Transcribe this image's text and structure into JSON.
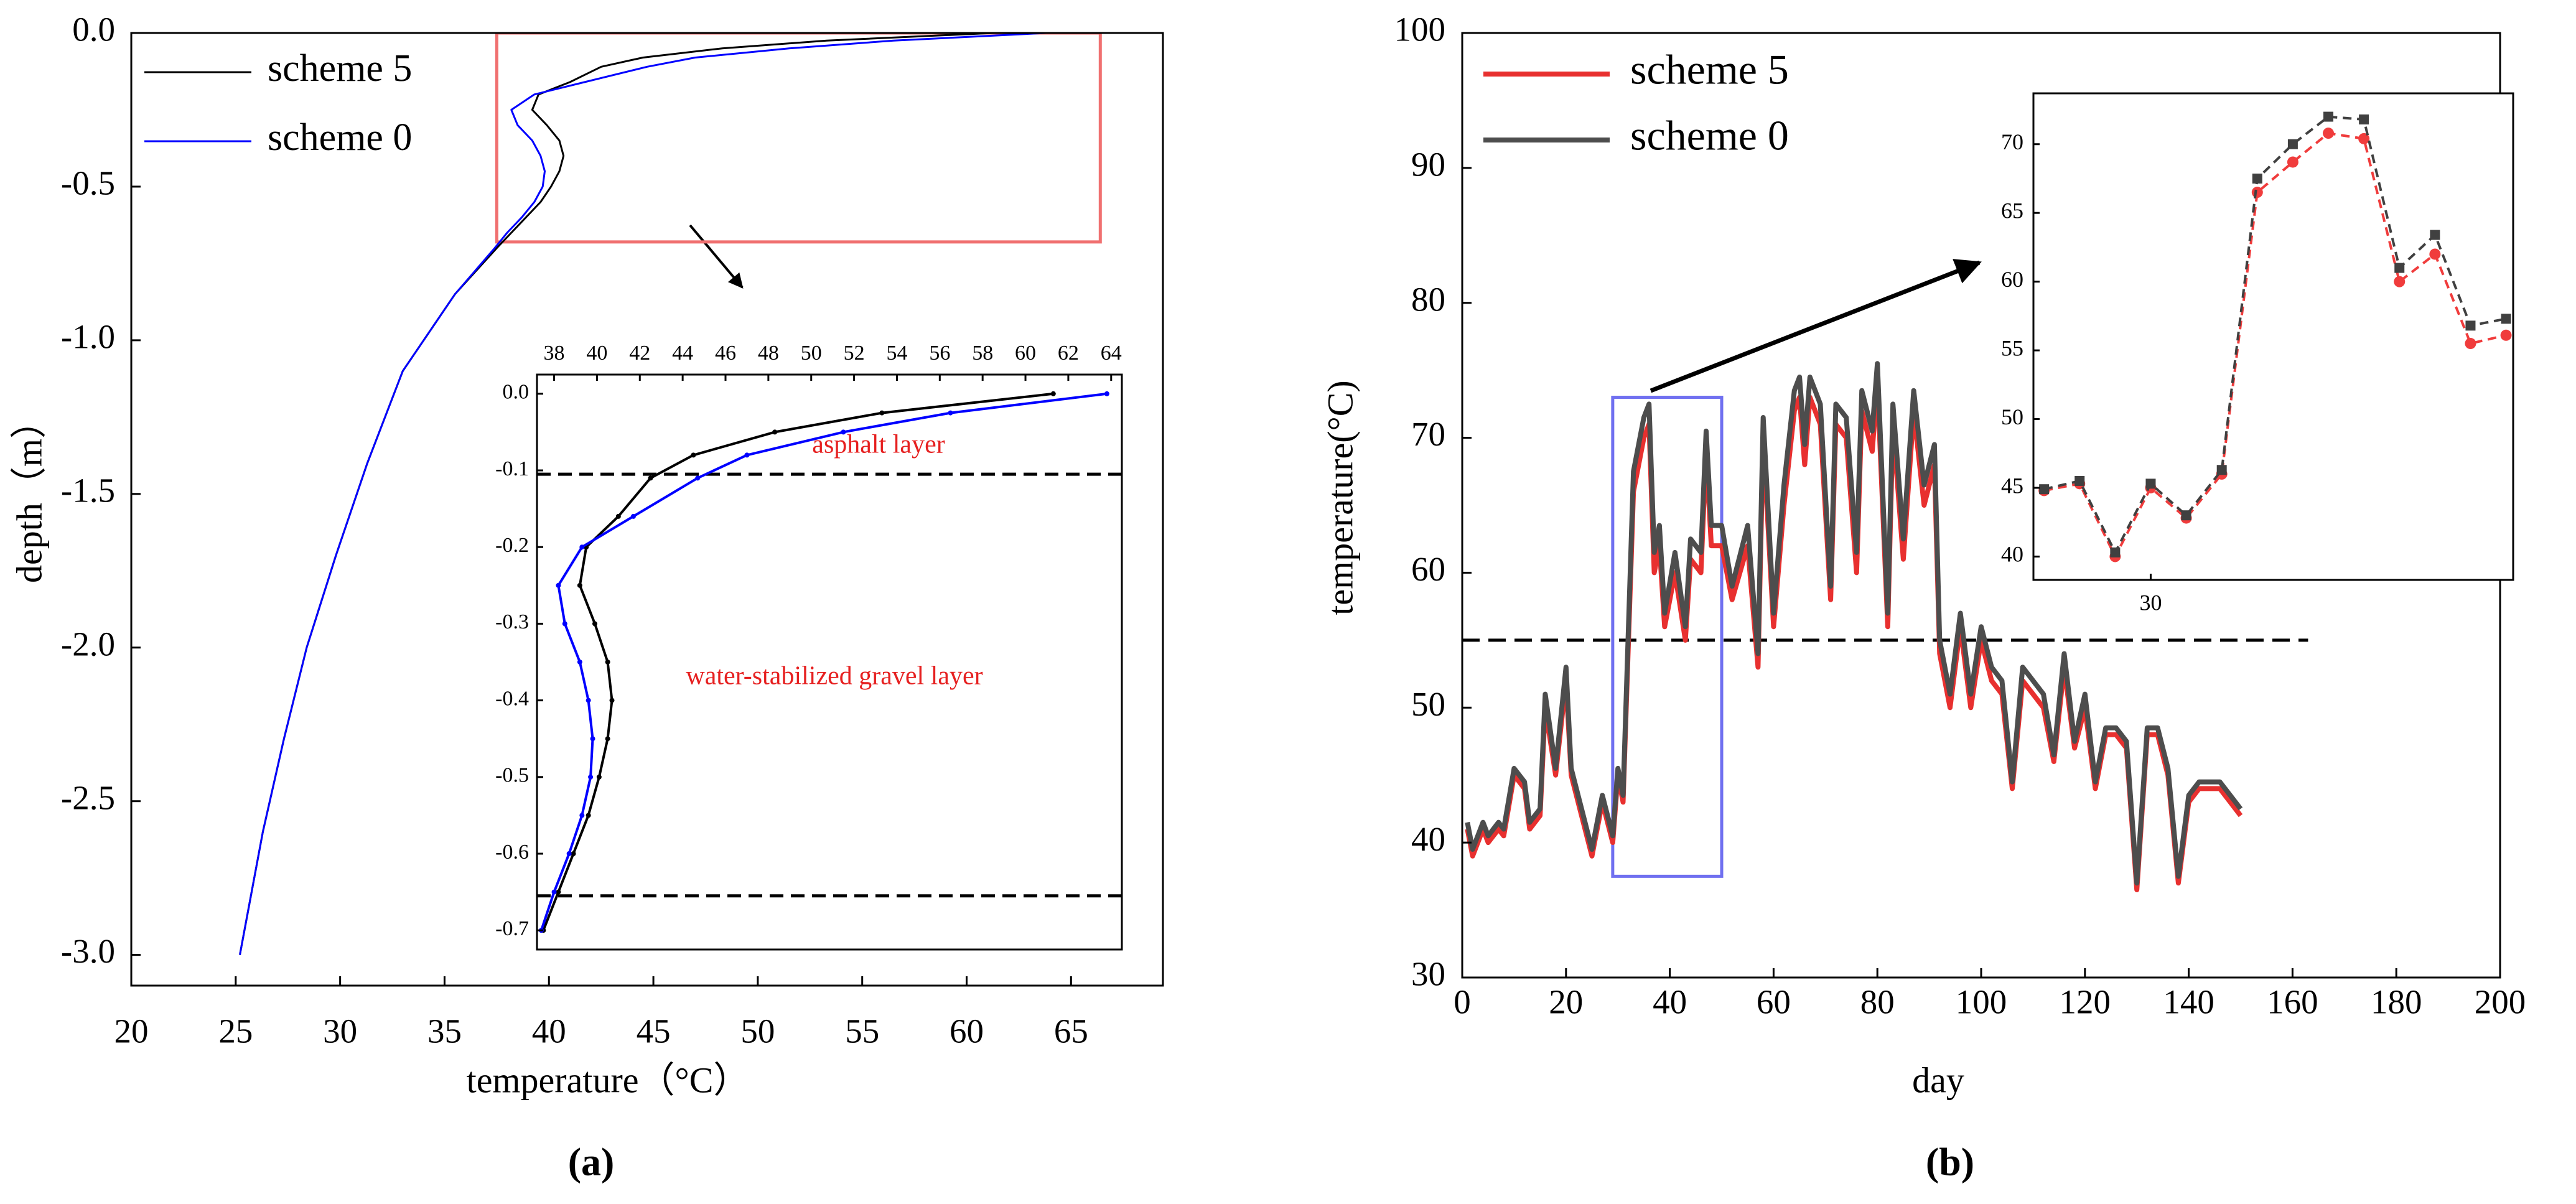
{
  "chart_data": [
    {
      "type": "line",
      "caption": "(a)",
      "xlabel": "temperature（°C）",
      "ylabel": "depth（m）",
      "xlim": [
        20,
        69.4
      ],
      "ylim": [
        -3.1,
        0
      ],
      "xticks": [
        20,
        25,
        30,
        35,
        40,
        45,
        50,
        55,
        60,
        65
      ],
      "yticks": [
        {
          "value": 0,
          "label": "0.0"
        },
        -0.5,
        {
          "value": -1,
          "label": "-1.0"
        },
        -1.5,
        {
          "value": -2,
          "label": "-2.0"
        },
        -2.5,
        {
          "value": -3,
          "label": "-3.0"
        }
      ],
      "legend": "upper left",
      "highlight": {
        "x": [
          37.5,
          66.4
        ],
        "y": [
          -0.68,
          0
        ]
      },
      "series": [
        {
          "name": "scheme 5",
          "color": "#000000",
          "x": [
            61.3,
            53.3,
            48.3,
            44.5,
            42.5,
            41,
            39.5,
            39.2,
            39.9,
            40.5,
            40.7,
            40.5,
            40.1,
            39.6,
            38.9,
            38.2,
            37.5,
            35.5,
            33,
            31.3,
            29.8,
            28.4,
            27.3,
            26.3,
            25.2
          ],
          "values": [
            0,
            -0.025,
            -0.05,
            -0.08,
            -0.11,
            -0.16,
            -0.2,
            -0.25,
            -0.3,
            -0.35,
            -0.4,
            -0.45,
            -0.5,
            -0.55,
            -0.6,
            -0.65,
            -0.7,
            -0.85,
            -1.1,
            -1.4,
            -1.7,
            -2.0,
            -2.3,
            -2.6,
            -3.0
          ]
        },
        {
          "name": "scheme 0",
          "color": "#0000ff",
          "x": [
            63.8,
            56.5,
            51.5,
            47,
            44.7,
            41.7,
            39.3,
            38.2,
            38.5,
            39.2,
            39.6,
            39.8,
            39.7,
            39.3,
            38.7,
            38.0,
            37.4,
            35.5,
            33,
            31.3,
            29.8,
            28.4,
            27.3,
            26.3,
            25.2
          ],
          "values": [
            0,
            -0.025,
            -0.05,
            -0.08,
            -0.11,
            -0.16,
            -0.2,
            -0.25,
            -0.3,
            -0.35,
            -0.4,
            -0.45,
            -0.5,
            -0.55,
            -0.6,
            -0.65,
            -0.7,
            -0.85,
            -1.1,
            -1.4,
            -1.7,
            -2.0,
            -2.3,
            -2.6,
            -3.0
          ]
        }
      ]
    },
    {
      "type": "line",
      "xaxis": "top",
      "xlim": [
        37.2,
        64.5
      ],
      "ylim": [
        -0.725,
        0.025
      ],
      "xticks": [
        38,
        40,
        42,
        44,
        46,
        48,
        50,
        52,
        54,
        56,
        58,
        60,
        62,
        64
      ],
      "yticks": [
        {
          "value": 0,
          "label": "0.0"
        },
        -0.1,
        -0.2,
        -0.3,
        -0.4,
        -0.5,
        -0.6,
        -0.7
      ],
      "hlines": [
        -0.105,
        -0.655
      ],
      "annotations": [
        "asphalt layer",
        "water-stabilized gravel layer"
      ],
      "series": [
        {
          "name": "scheme 5",
          "color": "#000000",
          "marker": "dot",
          "x": [
            61.3,
            53.3,
            48.3,
            44.5,
            42.5,
            41,
            39.5,
            39.2,
            39.9,
            40.5,
            40.7,
            40.5,
            40.1,
            39.6,
            38.9,
            38.2,
            37.5
          ],
          "values": [
            0,
            -0.025,
            -0.05,
            -0.08,
            -0.11,
            -0.16,
            -0.2,
            -0.25,
            -0.3,
            -0.35,
            -0.4,
            -0.45,
            -0.5,
            -0.55,
            -0.6,
            -0.65,
            -0.7
          ]
        },
        {
          "name": "scheme 0",
          "color": "#0000ff",
          "marker": "dot",
          "x": [
            63.8,
            56.5,
            51.5,
            47,
            44.7,
            41.7,
            39.3,
            38.2,
            38.5,
            39.2,
            39.6,
            39.8,
            39.7,
            39.3,
            38.7,
            38.0,
            37.4
          ],
          "values": [
            0,
            -0.025,
            -0.05,
            -0.08,
            -0.11,
            -0.16,
            -0.2,
            -0.25,
            -0.3,
            -0.35,
            -0.4,
            -0.45,
            -0.5,
            -0.55,
            -0.6,
            -0.65,
            -0.7
          ]
        }
      ]
    },
    {
      "type": "line",
      "caption": "(b)",
      "xlabel": "day",
      "ylabel": "temperature(°C)",
      "xlim": [
        0,
        200
      ],
      "ylim": [
        30,
        100
      ],
      "xticks": [
        0,
        20,
        40,
        60,
        80,
        100,
        120,
        140,
        160,
        180,
        200
      ],
      "yticks": [
        30,
        40,
        50,
        60,
        70,
        80,
        90,
        100
      ],
      "legend": "upper left",
      "hline": {
        "y": 55,
        "x": [
          0,
          163
        ]
      },
      "highlight": {
        "x": [
          29,
          50
        ],
        "y": [
          37.5,
          73
        ]
      },
      "series": [
        {
          "name": "scheme 5",
          "color": "#e8302f",
          "x": [
            1,
            2,
            4,
            5,
            7,
            8,
            10,
            12,
            13,
            15,
            16,
            18,
            20,
            21,
            23,
            25,
            27,
            29,
            30,
            31,
            33,
            35,
            36,
            37,
            38,
            39,
            41,
            43,
            44,
            46,
            47,
            48,
            50,
            52,
            55,
            57,
            58,
            60,
            62,
            64,
            65,
            66,
            67,
            69,
            71,
            72,
            74,
            76,
            77,
            79,
            80,
            82,
            83,
            85,
            87,
            89,
            91,
            92,
            94,
            96,
            98,
            100,
            102,
            104,
            106,
            108,
            110,
            112,
            114,
            116,
            118,
            120,
            122,
            124,
            126,
            128,
            130,
            132,
            134,
            136,
            138,
            140,
            142,
            144,
            146,
            148,
            150
          ],
          "values": [
            41,
            39,
            41,
            40,
            41,
            40.5,
            45,
            44,
            41,
            42,
            50,
            45,
            52,
            45,
            42,
            39,
            43,
            40,
            45,
            43,
            66,
            70,
            71,
            60,
            62,
            56,
            60,
            55,
            61,
            60,
            69,
            62,
            62,
            58,
            62,
            53,
            70,
            56,
            65,
            72,
            73,
            68,
            73,
            71,
            58,
            71,
            70,
            60,
            72,
            69,
            74,
            56,
            71,
            61,
            72,
            65,
            68,
            54,
            50,
            56,
            50,
            55,
            52,
            51,
            44,
            52,
            51,
            50,
            46,
            53,
            47,
            50,
            44,
            48,
            48,
            47,
            36.5,
            48,
            48,
            45,
            37,
            43,
            44,
            44,
            44,
            43,
            42
          ]
        },
        {
          "name": "scheme 0",
          "color": "#4d4d4d",
          "x": [
            1,
            2,
            4,
            5,
            7,
            8,
            10,
            12,
            13,
            15,
            16,
            18,
            20,
            21,
            23,
            25,
            27,
            29,
            30,
            31,
            33,
            35,
            36,
            37,
            38,
            39,
            41,
            43,
            44,
            46,
            47,
            48,
            50,
            52,
            55,
            57,
            58,
            60,
            62,
            64,
            65,
            66,
            67,
            69,
            71,
            72,
            74,
            76,
            77,
            79,
            80,
            82,
            83,
            85,
            87,
            89,
            91,
            92,
            94,
            96,
            98,
            100,
            102,
            104,
            106,
            108,
            110,
            112,
            114,
            116,
            118,
            120,
            122,
            124,
            126,
            128,
            130,
            132,
            134,
            136,
            138,
            140,
            142,
            144,
            146,
            148,
            150
          ],
          "values": [
            41.5,
            39.5,
            41.5,
            40.5,
            41.5,
            41,
            45.5,
            44.5,
            41.5,
            42.5,
            51,
            45.5,
            53,
            45.5,
            42.5,
            39.5,
            43.5,
            40.5,
            45.5,
            43.5,
            67.5,
            71.5,
            72.5,
            61.5,
            63.5,
            57,
            61.5,
            56,
            62.5,
            61.5,
            70.5,
            63.5,
            63.5,
            59,
            63.5,
            54,
            71.5,
            57,
            66.5,
            73.5,
            74.5,
            69.5,
            74.5,
            72.5,
            59,
            72.5,
            71.5,
            61.5,
            73.5,
            70.5,
            75.5,
            57,
            72.5,
            62.5,
            73.5,
            66.5,
            69.5,
            55,
            51,
            57,
            51,
            56,
            53,
            52,
            44.5,
            53,
            52,
            51,
            46.5,
            54,
            47.5,
            51,
            44.5,
            48.5,
            48.5,
            47.5,
            37,
            48.5,
            48.5,
            45.5,
            37.5,
            43.5,
            44.5,
            44.5,
            44.5,
            43.5,
            42.5
          ]
        }
      ]
    },
    {
      "type": "line",
      "xlim": [
        26.7,
        40.2
      ],
      "ylim": [
        38.3,
        73.7
      ],
      "xticks": [
        30
      ],
      "yticks": [
        40,
        45,
        50,
        55,
        60,
        65,
        70
      ],
      "series": [
        {
          "name": "scheme 5",
          "color": "#f03c3c",
          "marker": "circle",
          "linestyle": "dashed",
          "x": [
            27,
            28,
            29,
            30,
            31,
            32,
            33,
            34,
            35,
            36,
            37,
            38,
            39,
            40
          ],
          "values": [
            44.8,
            45.3,
            40.0,
            45.0,
            42.8,
            46.0,
            66.5,
            68.7,
            70.8,
            70.4,
            60.0,
            62.0,
            55.5,
            56.1
          ]
        },
        {
          "name": "scheme 0",
          "color": "#404040",
          "marker": "square",
          "linestyle": "dashed",
          "x": [
            27,
            28,
            29,
            30,
            31,
            32,
            33,
            34,
            35,
            36,
            37,
            38,
            39,
            40
          ],
          "values": [
            44.9,
            45.5,
            40.3,
            45.3,
            43.0,
            46.3,
            67.5,
            70.0,
            72.0,
            71.8,
            61.0,
            63.4,
            56.8,
            57.3
          ]
        }
      ]
    }
  ]
}
